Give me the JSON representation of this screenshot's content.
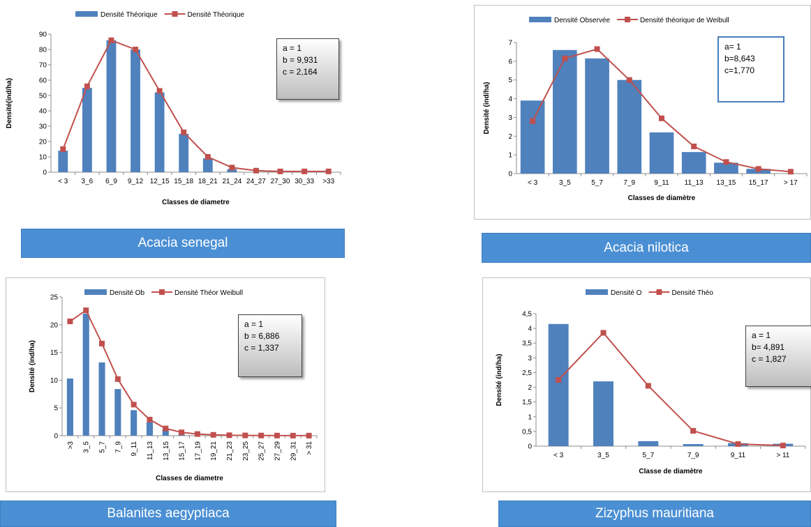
{
  "chart_data": [
    {
      "type": "bar",
      "species": "Acacia senegal",
      "categories": [
        "< 3",
        "3_6",
        "6_9",
        "9_12",
        "12_15",
        "15_18",
        "18_21",
        "21_24",
        "24_27",
        "27_30",
        "30_33",
        ">33"
      ],
      "series": [
        {
          "name": "Densité Théorique",
          "kind": "bar",
          "values": [
            14,
            55,
            86,
            80,
            52,
            25,
            9,
            2,
            0,
            0,
            0,
            0
          ]
        },
        {
          "name": "Densité Théorique",
          "kind": "line",
          "values": [
            15,
            56,
            86,
            80,
            53,
            26,
            10,
            3,
            1,
            0.5,
            0.5,
            0.5
          ]
        }
      ],
      "xlabel": "Classes de diametre",
      "ylabel": "Densité(ind/ha)",
      "ylim": [
        0,
        90
      ],
      "yticks": [
        0,
        10,
        20,
        30,
        40,
        50,
        60,
        70,
        80,
        90
      ],
      "params": [
        "a = 1",
        "b = 9,931",
        "c = 2,164"
      ],
      "legend": "top",
      "colors": {
        "bar": "#4f81bd",
        "line": "#c0504d"
      }
    },
    {
      "type": "bar",
      "species": "Acacia nilotica",
      "categories": [
        "< 3",
        "3_5",
        "5_7",
        "7_9",
        "9_11",
        "11_13",
        "13_15",
        "15_17",
        "> 17"
      ],
      "series": [
        {
          "name": "Densité Observée",
          "kind": "bar",
          "values": [
            3.9,
            6.6,
            6.15,
            5.0,
            2.2,
            1.15,
            0.58,
            0.25,
            0
          ]
        },
        {
          "name": "Densité théorique de Weibull",
          "kind": "line",
          "values": [
            2.8,
            6.15,
            6.65,
            5.0,
            2.95,
            1.45,
            0.62,
            0.25,
            0.1
          ]
        }
      ],
      "xlabel": "Classes de diamètre",
      "ylabel": "Densité (ind/ha)",
      "ylim": [
        0,
        7
      ],
      "yticks": [
        0,
        1,
        2,
        3,
        4,
        5,
        6,
        7
      ],
      "params": [
        "a= 1",
        "b=8,643",
        "c=1,770"
      ],
      "legend": "top",
      "colors": {
        "bar": "#4f81bd",
        "line": "#c0504d"
      }
    },
    {
      "type": "bar",
      "species": "Balanites aegyptiaca",
      "categories": [
        ">3",
        "3_5",
        "5_7",
        "7_9",
        "9_11",
        "11_13",
        "13_15",
        "15_17",
        "17_19",
        "19_21",
        "21_23",
        "23_25",
        "25_27",
        "27_29",
        "29_31",
        "> 31"
      ],
      "series": [
        {
          "name": "Densité Ob",
          "kind": "bar",
          "values": [
            10.3,
            22.0,
            13.2,
            8.4,
            4.6,
            2.4,
            1.2,
            0.3,
            0,
            0,
            0,
            0,
            0,
            0,
            0,
            0
          ]
        },
        {
          "name": "Densité Théor Weibull",
          "kind": "line",
          "values": [
            20.6,
            22.6,
            16.6,
            10.2,
            5.6,
            2.9,
            1.3,
            0.6,
            0.3,
            0.15,
            0.08,
            0.05,
            0.03,
            0.02,
            0.01,
            0.01
          ]
        }
      ],
      "xlabel": "Classes de diametre",
      "ylabel": "Densité (ind/ha)",
      "ylim": [
        0,
        25
      ],
      "yticks": [
        0,
        5,
        10,
        15,
        20,
        25
      ],
      "params": [
        "a = 1",
        "b = 6,886",
        "c = 1,337"
      ],
      "legend": "top",
      "colors": {
        "bar": "#4f81bd",
        "line": "#c0504d"
      }
    },
    {
      "type": "bar",
      "species": "Zizyphus mauritiana",
      "categories": [
        "< 3",
        "3_5",
        "5_7",
        "7_9",
        "9_11",
        "> 11"
      ],
      "series": [
        {
          "name": "Densité O",
          "kind": "bar",
          "values": [
            4.15,
            2.2,
            0.17,
            0.07,
            0.1,
            0.08
          ]
        },
        {
          "name": "Densité Théo",
          "kind": "line",
          "values": [
            2.25,
            3.85,
            2.05,
            0.52,
            0.07,
            0.02
          ]
        }
      ],
      "xlabel": "Classe de diamètre",
      "ylabel": "Densité (ind/ha)",
      "ylim": [
        0,
        4.5
      ],
      "yticks": [
        "0",
        "0,5",
        "1",
        "1,5",
        "2",
        "2,5",
        "3",
        "3,5",
        "4",
        "4,5"
      ],
      "params": [
        "a = 1",
        "b= 4,891",
        "c = 1,827"
      ],
      "legend": "top",
      "colors": {
        "bar": "#4f81bd",
        "line": "#c0504d"
      }
    }
  ],
  "species_bar_color": "#4a8fd4"
}
